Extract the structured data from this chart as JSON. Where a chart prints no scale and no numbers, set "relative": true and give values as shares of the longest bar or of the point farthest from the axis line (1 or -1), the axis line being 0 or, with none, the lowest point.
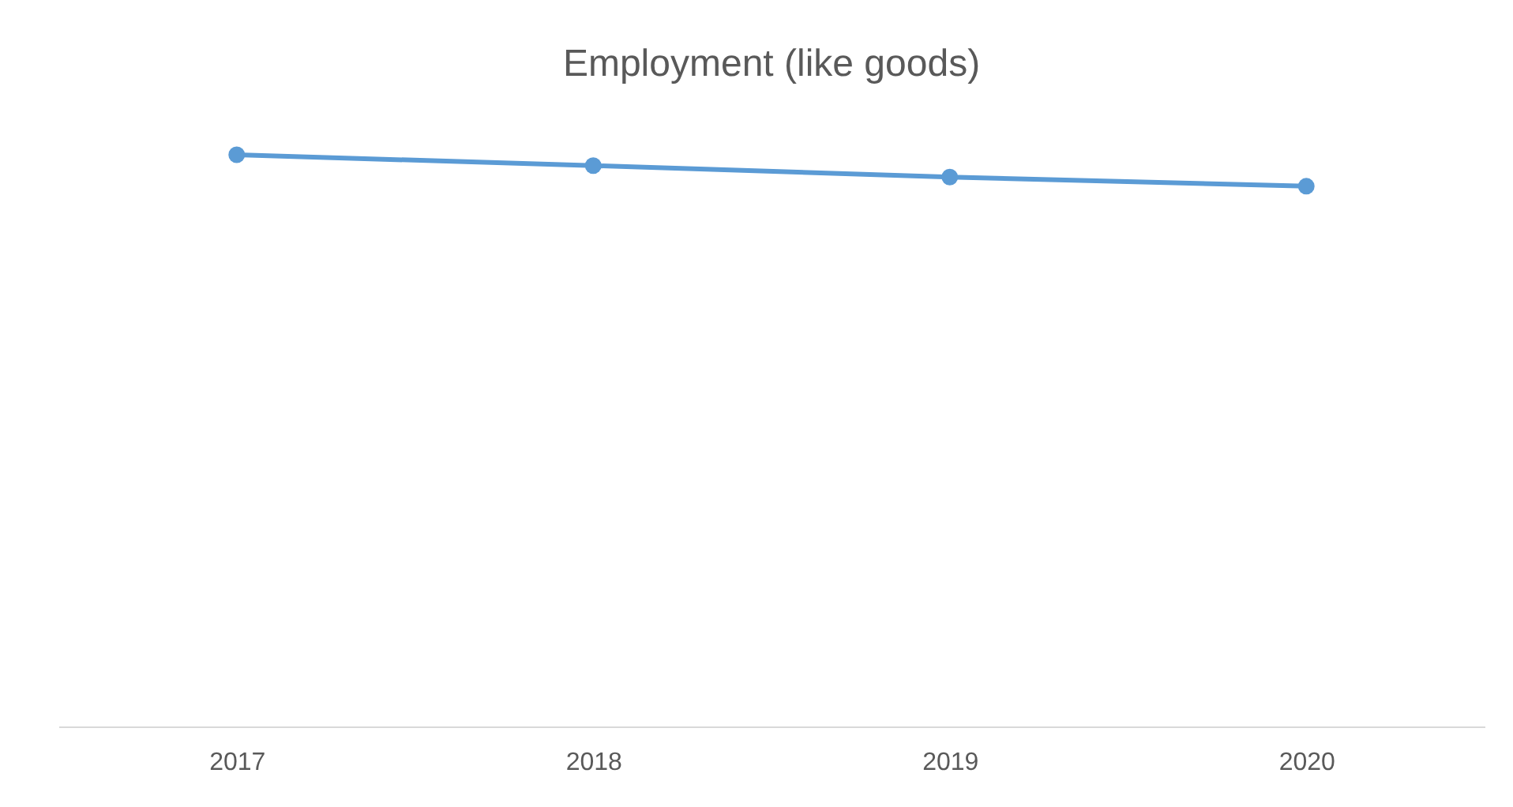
{
  "chart_data": {
    "type": "line",
    "title": "Employment (like goods)",
    "categories": [
      "2017",
      "2018",
      "2019",
      "2020"
    ],
    "relative": true,
    "marker": "circle",
    "line_style": "solid",
    "grid": false,
    "series": [
      {
        "color": "#5b9bd5",
        "values": [
          1,
          0.981,
          0.961,
          0.945
        ]
      }
    ]
  }
}
